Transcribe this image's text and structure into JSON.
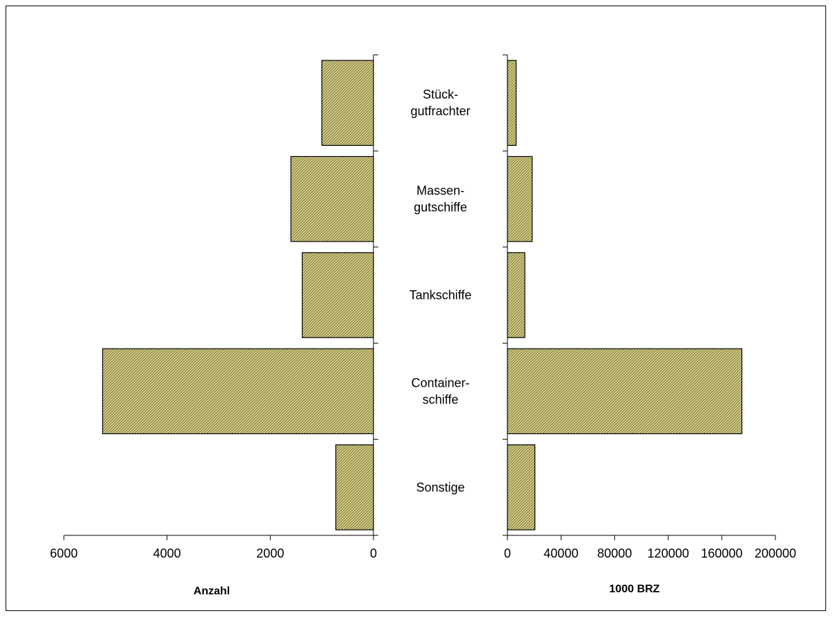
{
  "chart_data": {
    "type": "bar",
    "orientation": "horizontal",
    "layout": "butterfly",
    "categories": [
      [
        "Stück-",
        "gutfrachter"
      ],
      [
        "Massen-",
        "gutschiffe"
      ],
      [
        "Tankschiffe"
      ],
      [
        "Container-",
        "schiffe"
      ],
      [
        "Sonstige"
      ]
    ],
    "left_panel": {
      "xlabel": "Anzahl",
      "xlim": [
        0,
        6000
      ],
      "reversed": true,
      "ticks": [
        "6000",
        "4000",
        "2000",
        "0"
      ],
      "values": [
        1000,
        1600,
        1380,
        5250,
        730
      ]
    },
    "right_panel": {
      "xlabel": "1000 BRZ",
      "xlim": [
        0,
        200000
      ],
      "ticks": [
        "0",
        "40000",
        "80000",
        "120000",
        "160000",
        "200000"
      ],
      "values": [
        6500,
        18500,
        13000,
        175000,
        20500
      ]
    },
    "bar_fill": "#d8d08a",
    "bar_hatch": "#6b6a30",
    "grid": false,
    "legend": "none"
  }
}
